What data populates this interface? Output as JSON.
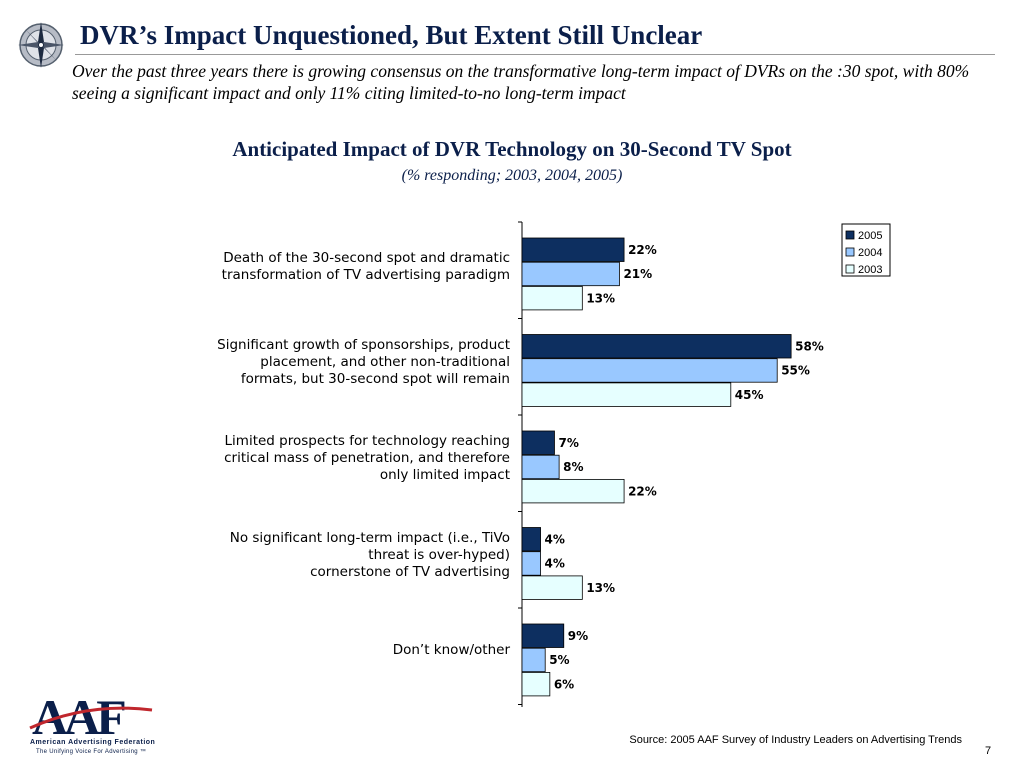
{
  "header": {
    "title": "DVR’s Impact Unquestioned, But Extent Still Unclear",
    "subtitle": "Over the past three years there is growing consensus on the transformative long-term impact of DVRs on the :30 spot, with 80% seeing a significant impact and only 11% citing limited-to-no long-term impact"
  },
  "chart_data": {
    "type": "bar",
    "orientation": "horizontal",
    "title": "Anticipated Impact of DVR Technology on 30-Second TV Spot",
    "subtitle": "(% responding; 2003, 2004, 2005)",
    "categories": [
      [
        "Death of the 30-second spot and dramatic",
        "transformation of TV advertising paradigm"
      ],
      [
        "Significant growth of sponsorships, product",
        "placement, and other non-traditional",
        "formats, but 30-second spot will remain"
      ],
      [
        "Limited prospects for technology reaching",
        "critical mass of penetration, and therefore",
        "only limited impact"
      ],
      [
        "No significant long-term impact (i.e., TiVo",
        "threat is over-hyped)",
        "cornerstone of TV advertising"
      ],
      [
        "Don’t know/other"
      ]
    ],
    "series": [
      {
        "name": "2005",
        "color": "#0d2f60",
        "values": [
          22,
          58,
          7,
          4,
          9
        ],
        "labels": [
          "22%",
          "58%",
          "7%",
          "4%",
          "9%"
        ]
      },
      {
        "name": "2004",
        "color": "#99c8ff",
        "values": [
          21,
          55,
          8,
          4,
          5
        ],
        "labels": [
          "21%",
          "55%",
          "8%",
          "4%",
          "5%"
        ]
      },
      {
        "name": "2003",
        "color": "#e6ffff",
        "values": [
          13,
          45,
          22,
          13,
          6
        ],
        "labels": [
          "13%",
          "45%",
          "22%",
          "13%",
          "6%"
        ]
      }
    ],
    "xlim": [
      0,
      100
    ],
    "legend": "top-right",
    "grid": false
  },
  "footer": {
    "source": "Source: 2005 AAF Survey of Industry Leaders on Advertising Trends",
    "page_number": "7",
    "logo_text": "AAF",
    "logo_name": "American Advertising Federation",
    "logo_tagline": "The Unifying Voice For Advertising ™"
  }
}
